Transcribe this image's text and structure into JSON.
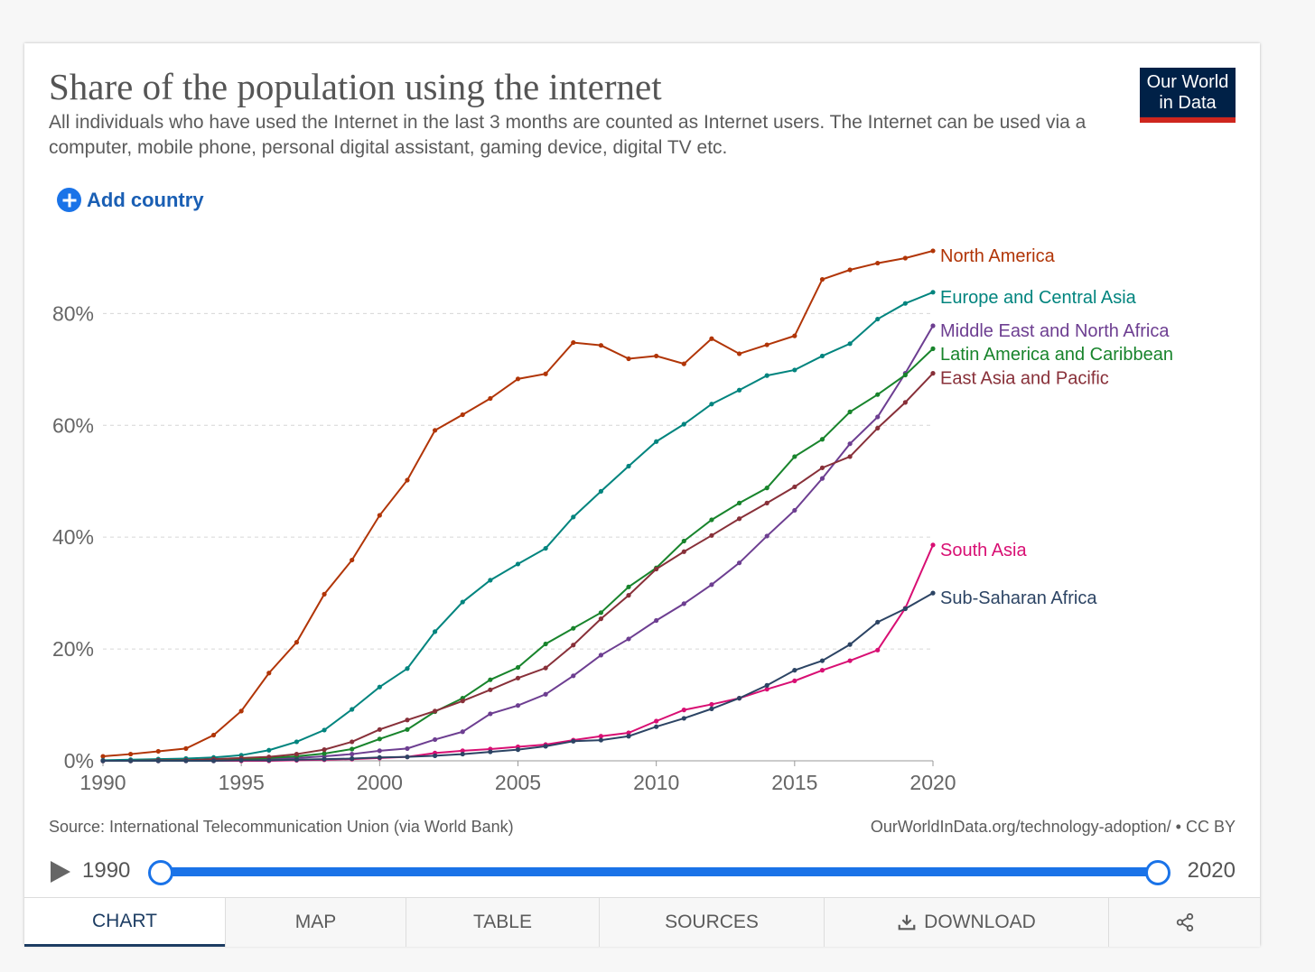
{
  "header": {
    "title": "Share of the population using the internet",
    "subtitle": "All individuals who have used the Internet in the last 3 months are counted as Internet users. The Internet can be used via a computer, mobile phone, personal digital assistant, gaming device, digital TV etc.",
    "logo_line1": "Our World",
    "logo_line2": "in Data",
    "add_country_label": "Add country",
    "add_country_icon": "plus-circle-icon"
  },
  "chart_data": {
    "type": "line",
    "title": "Share of the population using the internet",
    "xlabel": "",
    "ylabel": "",
    "xlim": [
      1990,
      2020
    ],
    "ylim": [
      0,
      92
    ],
    "x_ticks": [
      1990,
      1995,
      2000,
      2005,
      2010,
      2015,
      2020
    ],
    "x_tick_labels": [
      "1990",
      "1995",
      "2000",
      "2005",
      "2010",
      "2015",
      "2020"
    ],
    "y_ticks": [
      0,
      20,
      40,
      60,
      80
    ],
    "y_tick_labels": [
      "0%",
      "20%",
      "40%",
      "60%",
      "80%"
    ],
    "grid": "horizontal dashed",
    "legend": "labels at line ends",
    "x": [
      1990,
      1991,
      1992,
      1993,
      1994,
      1995,
      1996,
      1997,
      1998,
      1999,
      2000,
      2001,
      2002,
      2003,
      2004,
      2005,
      2006,
      2007,
      2008,
      2009,
      2010,
      2011,
      2012,
      2013,
      2014,
      2015,
      2016,
      2017,
      2018,
      2019,
      2020
    ],
    "series": [
      {
        "name": "North America",
        "color": "#b13507",
        "values": [
          0.8,
          1.2,
          1.7,
          2.2,
          4.6,
          8.9,
          15.7,
          21.2,
          29.8,
          35.9,
          43.9,
          50.2,
          59.1,
          61.9,
          64.8,
          68.3,
          69.2,
          74.8,
          74.3,
          71.9,
          72.4,
          71.0,
          75.5,
          72.8,
          74.4,
          76.0,
          86.1,
          87.8,
          89.0,
          89.9,
          91.2
        ]
      },
      {
        "name": "Europe and Central Asia",
        "color": "#00847e",
        "values": [
          0.1,
          0.2,
          0.3,
          0.4,
          0.6,
          1.0,
          1.9,
          3.4,
          5.5,
          9.2,
          13.2,
          16.5,
          23.1,
          28.4,
          32.3,
          35.2,
          38.0,
          43.6,
          48.2,
          52.7,
          57.1,
          60.2,
          63.8,
          66.3,
          68.9,
          69.9,
          72.4,
          74.6,
          79.0,
          81.8,
          83.8
        ]
      },
      {
        "name": "Middle East and North Africa",
        "color": "#6d3e91",
        "values": [
          0.0,
          0.0,
          0.0,
          0.1,
          0.1,
          0.2,
          0.3,
          0.5,
          0.8,
          1.2,
          1.8,
          2.2,
          3.8,
          5.2,
          8.4,
          9.9,
          11.9,
          15.2,
          18.9,
          21.8,
          25.1,
          28.1,
          31.5,
          35.4,
          40.2,
          44.8,
          50.5,
          56.7,
          61.5,
          69.3,
          77.8
        ]
      },
      {
        "name": "Latin America and Caribbean",
        "color": "#18842c",
        "values": [
          0.0,
          0.0,
          0.1,
          0.1,
          0.2,
          0.3,
          0.5,
          0.8,
          1.3,
          2.1,
          3.9,
          5.6,
          8.8,
          11.2,
          14.5,
          16.7,
          20.9,
          23.7,
          26.5,
          31.1,
          34.5,
          39.3,
          43.1,
          46.1,
          48.8,
          54.4,
          57.5,
          62.4,
          65.5,
          69.0,
          73.7
        ]
      },
      {
        "name": "East Asia and Pacific",
        "color": "#883039",
        "values": [
          0.0,
          0.0,
          0.1,
          0.1,
          0.3,
          0.5,
          0.7,
          1.2,
          2.0,
          3.4,
          5.6,
          7.3,
          8.9,
          10.7,
          12.7,
          14.8,
          16.6,
          20.7,
          25.4,
          29.6,
          34.3,
          37.4,
          40.3,
          43.3,
          46.1,
          49.0,
          52.4,
          54.4,
          59.5,
          64.1,
          69.3
        ]
      },
      {
        "name": "South Asia",
        "color": "#d80f73",
        "values": [
          0.0,
          0.0,
          0.0,
          0.0,
          0.0,
          0.0,
          0.0,
          0.1,
          0.2,
          0.3,
          0.5,
          0.7,
          1.4,
          1.8,
          2.1,
          2.5,
          2.9,
          3.7,
          4.4,
          5.0,
          7.1,
          9.1,
          10.1,
          11.2,
          12.8,
          14.3,
          16.2,
          17.9,
          19.8,
          27.3,
          38.6
        ]
      },
      {
        "name": "Sub-Saharan Africa",
        "color": "#2c4464",
        "values": [
          0.0,
          0.0,
          0.0,
          0.0,
          0.0,
          0.1,
          0.1,
          0.2,
          0.3,
          0.4,
          0.6,
          0.7,
          0.9,
          1.2,
          1.6,
          2.0,
          2.6,
          3.5,
          3.7,
          4.4,
          6.1,
          7.6,
          9.3,
          11.2,
          13.5,
          16.2,
          17.9,
          20.8,
          24.8,
          27.2,
          30.0
        ]
      }
    ]
  },
  "footer": {
    "source": "Source: International Telecommunication Union (via World Bank)",
    "url": "OurWorldInData.org/technology-adoption/ • CC BY"
  },
  "timeline": {
    "start_label": "1990",
    "end_label": "2020",
    "start_value": 1990,
    "end_value": 2020,
    "play_icon": "play-icon"
  },
  "tabs": [
    {
      "label": "CHART",
      "active": true
    },
    {
      "label": "MAP",
      "active": false
    },
    {
      "label": "TABLE",
      "active": false
    },
    {
      "label": "SOURCES",
      "active": false
    },
    {
      "label": "DOWNLOAD",
      "active": false,
      "icon": "download-icon"
    },
    {
      "label": "",
      "active": false,
      "icon": "share-icon"
    }
  ]
}
